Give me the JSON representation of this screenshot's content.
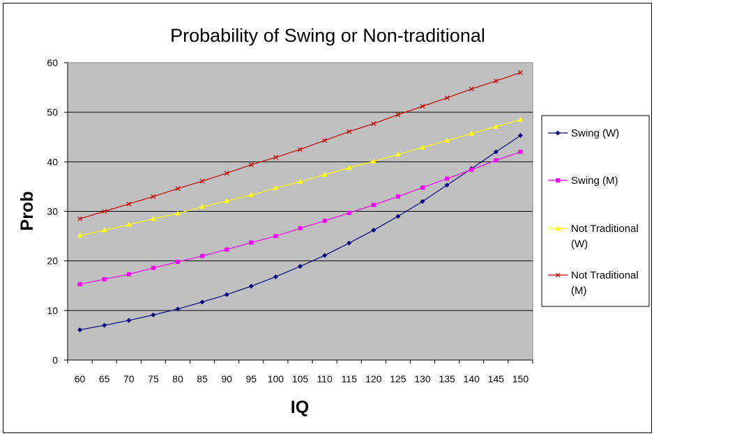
{
  "chart_data": {
    "type": "line",
    "title": "Probability of Swing or Non-traditional",
    "xlabel": "IQ",
    "ylabel": "Prob",
    "categories": [
      "60",
      "65",
      "70",
      "75",
      "80",
      "85",
      "90",
      "95",
      "100",
      "105",
      "110",
      "115",
      "120",
      "125",
      "130",
      "135",
      "140",
      "145",
      "150"
    ],
    "ylim": [
      0,
      60
    ],
    "yticks": [
      "0",
      "10",
      "20",
      "30",
      "40",
      "50",
      "60"
    ],
    "grid": true,
    "plot_background": "#c0c0c0",
    "legend_position": "right",
    "series": [
      {
        "name": "Swing (W)",
        "color": "#000080",
        "marker": "diamond",
        "values": [
          6.1,
          7.0,
          8.0,
          9.1,
          10.3,
          11.7,
          13.2,
          14.9,
          16.8,
          18.9,
          21.1,
          23.6,
          26.2,
          29.0,
          32.0,
          35.3,
          38.6,
          42.0,
          45.3
        ]
      },
      {
        "name": "Swing (M)",
        "color": "#ff00ff",
        "marker": "square",
        "values": [
          15.3,
          16.3,
          17.3,
          18.6,
          19.8,
          21.0,
          22.3,
          23.7,
          25.0,
          26.6,
          28.1,
          29.7,
          31.3,
          33.0,
          34.8,
          36.6,
          38.4,
          40.3,
          42.0
        ]
      },
      {
        "name": "Not Traditional (W)",
        "color": "#ffff00",
        "marker": "triangle",
        "values": [
          25.1,
          26.2,
          27.3,
          28.5,
          29.6,
          30.9,
          32.1,
          33.3,
          34.7,
          36.0,
          37.4,
          38.8,
          40.1,
          41.5,
          42.9,
          44.3,
          45.7,
          47.1,
          48.5
        ]
      },
      {
        "name": "Not Traditional (M)",
        "color": "#cc0000",
        "marker": "x",
        "values": [
          28.5,
          30.0,
          31.5,
          33.0,
          34.6,
          36.1,
          37.7,
          39.4,
          40.9,
          42.5,
          44.3,
          46.1,
          47.7,
          49.5,
          51.2,
          52.9,
          54.7,
          56.3,
          58.0
        ]
      }
    ]
  },
  "legend": {
    "items": [
      {
        "lines": [
          "Swing (W)"
        ]
      },
      {
        "lines": [
          "Swing (M)"
        ]
      },
      {
        "lines": [
          "Not Traditional",
          "(W)"
        ]
      },
      {
        "lines": [
          "Not Traditional",
          "(M)"
        ]
      }
    ]
  }
}
